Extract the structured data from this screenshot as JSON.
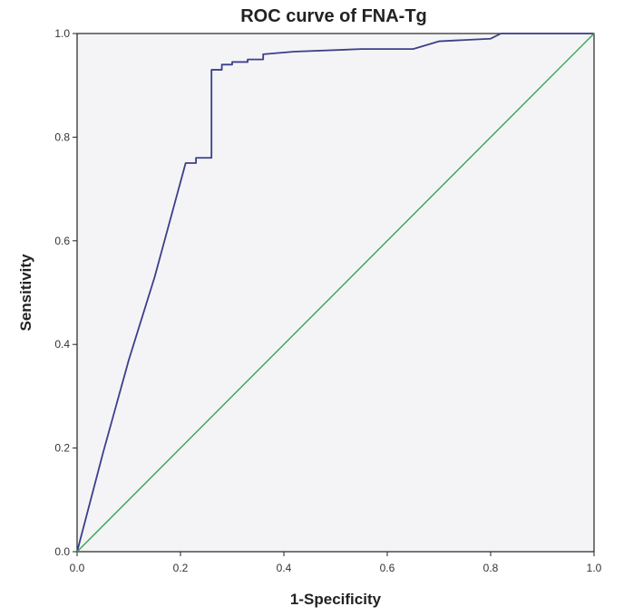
{
  "chart_data": {
    "type": "line",
    "title": "ROC curve of FNA-Tg",
    "xlabel": "1-Specificity",
    "ylabel": "Sensitivity",
    "xlim": [
      0,
      1
    ],
    "ylim": [
      0,
      1
    ],
    "xticks": [
      "0.0",
      "0.2",
      "0.4",
      "0.6",
      "0.8",
      "1.0"
    ],
    "yticks": [
      "0.0",
      "0.2",
      "0.4",
      "0.6",
      "0.8",
      "1.0"
    ],
    "grid": false,
    "legend": "none",
    "plot_background": "#f4f4f6",
    "series": [
      {
        "color": "#3b3f8a",
        "points": [
          [
            0.0,
            0.0
          ],
          [
            0.05,
            0.19
          ],
          [
            0.1,
            0.37
          ],
          [
            0.15,
            0.53
          ],
          [
            0.21,
            0.75
          ],
          [
            0.23,
            0.75
          ],
          [
            0.23,
            0.76
          ],
          [
            0.26,
            0.76
          ],
          [
            0.26,
            0.93
          ],
          [
            0.28,
            0.93
          ],
          [
            0.28,
            0.94
          ],
          [
            0.3,
            0.94
          ],
          [
            0.3,
            0.945
          ],
          [
            0.33,
            0.945
          ],
          [
            0.33,
            0.95
          ],
          [
            0.36,
            0.95
          ],
          [
            0.36,
            0.96
          ],
          [
            0.42,
            0.965
          ],
          [
            0.55,
            0.97
          ],
          [
            0.65,
            0.97
          ],
          [
            0.7,
            0.985
          ],
          [
            0.8,
            0.99
          ],
          [
            0.82,
            1.0
          ],
          [
            1.0,
            1.0
          ]
        ]
      },
      {
        "color": "#2fa84f",
        "points": [
          [
            0.0,
            0.0
          ],
          [
            1.0,
            1.0
          ]
        ]
      }
    ]
  }
}
